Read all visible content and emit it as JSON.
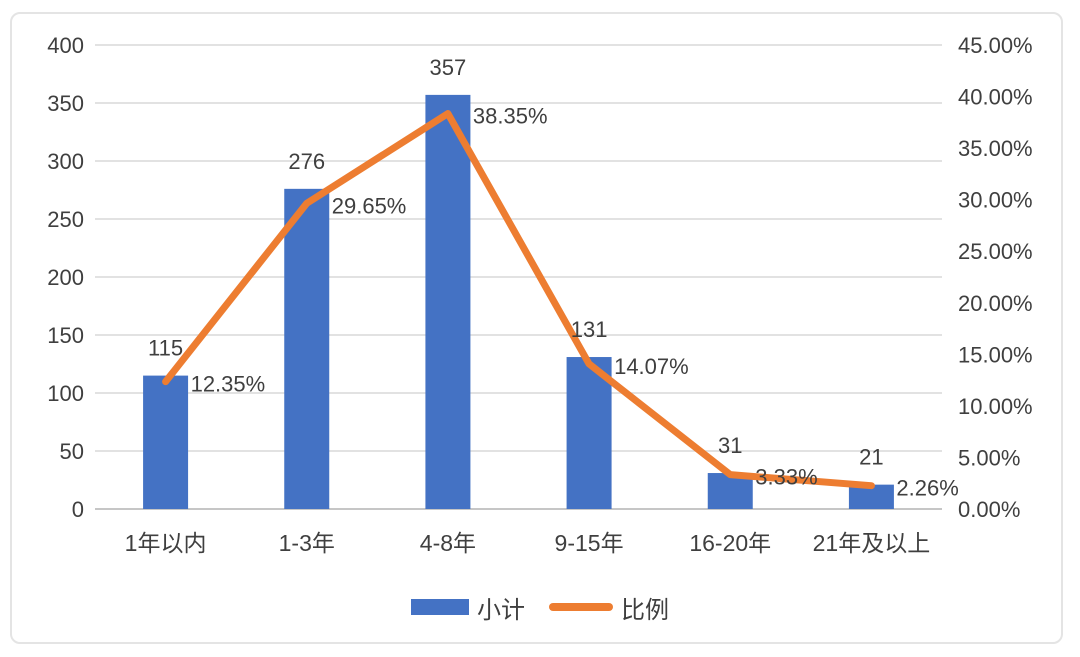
{
  "chart_data": {
    "type": "bar",
    "subtype": "combo-bar-line-dual-axis",
    "categories": [
      "1年以内",
      "1-3年",
      "4-8年",
      "9-15年",
      "16-20年",
      "21年及以上"
    ],
    "series": [
      {
        "name": "小计",
        "chart": "bar",
        "axis": "left",
        "color": "#4472C4",
        "values": [
          115,
          276,
          357,
          131,
          31,
          21
        ],
        "labels": [
          "115",
          "276",
          "357",
          "131",
          "31",
          "21"
        ]
      },
      {
        "name": "比例",
        "chart": "line",
        "axis": "right",
        "color": "#ED7D31",
        "values": [
          12.35,
          29.65,
          38.35,
          14.07,
          3.33,
          2.26
        ],
        "labels": [
          "12.35%",
          "29.65%",
          "38.35%",
          "14.07%",
          "3.33%",
          "2.26%"
        ]
      }
    ],
    "left_axis": {
      "min": 0,
      "max": 400,
      "step": 50,
      "tick_labels": [
        "400",
        "350",
        "300",
        "250",
        "200",
        "150",
        "100",
        "50",
        "0"
      ]
    },
    "right_axis": {
      "min": 0,
      "max": 45,
      "step": 5,
      "tick_labels": [
        "45.00%",
        "40.00%",
        "35.00%",
        "30.00%",
        "25.00%",
        "20.00%",
        "15.00%",
        "10.00%",
        "5.00%",
        "0.00%"
      ]
    },
    "grid": true,
    "legend_position": "bottom",
    "legend": [
      {
        "label": "小计",
        "marker": "bar",
        "color": "#4472C4"
      },
      {
        "label": "比例",
        "marker": "line",
        "color": "#ED7D31"
      }
    ]
  },
  "colors": {
    "bar": "#4472C4",
    "line": "#ED7D31",
    "text": "#3F3F3F",
    "gridline": "#D9D9D9",
    "axis_line": "#C6C6C6",
    "card_border": "#E4E4E4",
    "background": "#FFFFFF"
  }
}
